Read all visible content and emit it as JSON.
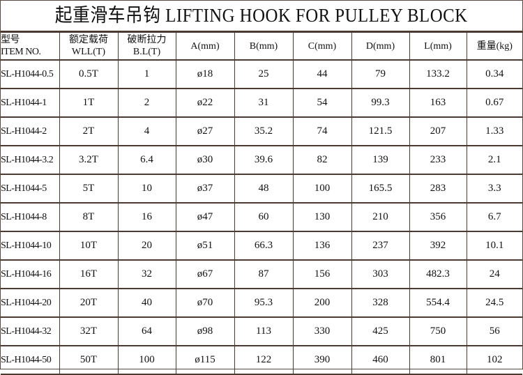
{
  "title": "起重滑车吊钩 LIFTING HOOK FOR PULLEY BLOCK",
  "headers": [
    {
      "line1": "型号",
      "line2": "ITEM NO."
    },
    {
      "line1": "额定载荷",
      "line2": "WLL(T)"
    },
    {
      "line1": "破断拉力",
      "line2": "B.L(T)"
    },
    {
      "line1": "A(mm)",
      "line2": ""
    },
    {
      "line1": "B(mm)",
      "line2": ""
    },
    {
      "line1": "C(mm)",
      "line2": ""
    },
    {
      "line1": "D(mm)",
      "line2": ""
    },
    {
      "line1": "L(mm)",
      "line2": ""
    },
    {
      "line1": "重量(kg)",
      "line2": ""
    }
  ],
  "rows": [
    [
      "SL-H1044-0.5",
      "0.5T",
      "1",
      "ø18",
      "25",
      "44",
      "79",
      "133.2",
      "0.34"
    ],
    [
      "SL-H1044-1",
      "1T",
      "2",
      "ø22",
      "31",
      "54",
      "99.3",
      "163",
      "0.67"
    ],
    [
      "SL-H1044-2",
      "2T",
      "4",
      "ø27",
      "35.2",
      "74",
      "121.5",
      "207",
      "1.33"
    ],
    [
      "SL-H1044-3.2",
      "3.2T",
      "6.4",
      "ø30",
      "39.6",
      "82",
      "139",
      "233",
      "2.1"
    ],
    [
      "SL-H1044-5",
      "5T",
      "10",
      "ø37",
      "48",
      "100",
      "165.5",
      "283",
      "3.3"
    ],
    [
      "SL-H1044-8",
      "8T",
      "16",
      "ø47",
      "60",
      "130",
      "210",
      "356",
      "6.7"
    ],
    [
      "SL-H1044-10",
      "10T",
      "20",
      "ø51",
      "66.3",
      "136",
      "237",
      "392",
      "10.1"
    ],
    [
      "SL-H1044-16",
      "16T",
      "32",
      "ø67",
      "87",
      "156",
      "303",
      "482.3",
      "24"
    ],
    [
      "SL-H1044-20",
      "20T",
      "40",
      "ø70",
      "95.3",
      "200",
      "328",
      "554.4",
      "24.5"
    ],
    [
      "SL-H1044-32",
      "32T",
      "64",
      "ø98",
      "113",
      "330",
      "425",
      "750",
      "56"
    ],
    [
      "SL-H1044-50",
      "50T",
      "100",
      "ø115",
      "122",
      "390",
      "460",
      "801",
      "102"
    ]
  ],
  "colors": {
    "border": "#4a3a30",
    "text": "#111111"
  }
}
